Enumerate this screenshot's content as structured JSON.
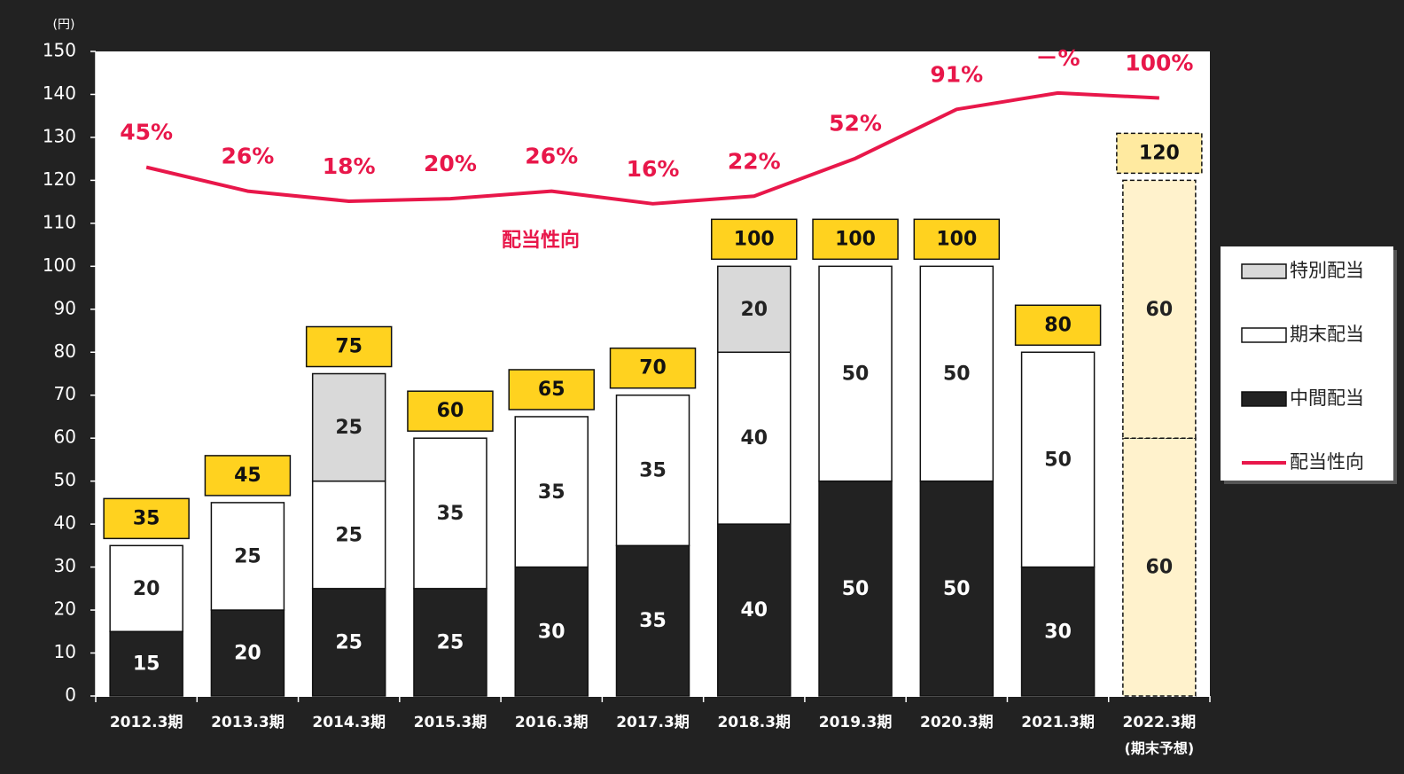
{
  "chart_data": {
    "type": "bar",
    "y_unit_label": "(円)",
    "categories": [
      "2012.3期",
      "2013.3期",
      "2014.3期",
      "2015.3期",
      "2016.3期",
      "2017.3期",
      "2018.3期",
      "2019.3期",
      "2020.3期",
      "2021.3期",
      "2022.3期"
    ],
    "category_notes": [
      null,
      null,
      null,
      null,
      null,
      null,
      null,
      null,
      null,
      null,
      "(期末予想)"
    ],
    "forecast_color": "#fff2cc",
    "forecast_total_color": "#ffeaa0",
    "series": [
      {
        "name": "中間配当",
        "color": "#222222",
        "label_color": "#ffffff",
        "values": [
          15,
          20,
          25,
          25,
          30,
          35,
          40,
          50,
          50,
          30,
          60
        ]
      },
      {
        "name": "期末配当",
        "color": "#ffffff",
        "label_color": "#222222",
        "values": [
          20,
          25,
          25,
          35,
          35,
          35,
          40,
          50,
          50,
          50,
          60
        ]
      },
      {
        "name": "特別配当",
        "color": "#d9d9d9",
        "label_color": "#222222",
        "values": [
          null,
          null,
          25,
          null,
          null,
          null,
          20,
          null,
          null,
          null,
          null
        ]
      },
      {
        "name": "配当性向",
        "type": "line",
        "axis": "y2",
        "color": "#e8174a",
        "values": [
          45,
          26,
          18,
          20,
          26,
          16,
          22,
          52,
          91,
          104,
          100
        ],
        "value_labels": [
          "45%",
          "26%",
          "18%",
          "20%",
          "26%",
          "16%",
          "22%",
          "52%",
          "91%",
          "－%",
          "100%"
        ]
      }
    ],
    "totals": [
      35,
      45,
      75,
      60,
      65,
      70,
      100,
      100,
      100,
      80,
      120
    ],
    "total_color": "#ffd21f",
    "annotation": "配当性向",
    "ylim": [
      0,
      150
    ],
    "yticks": [
      0,
      10,
      20,
      30,
      40,
      50,
      60,
      70,
      80,
      90,
      100,
      110,
      120,
      130,
      140,
      150
    ],
    "y2lim": [
      -375,
      137
    ],
    "grid": false
  }
}
